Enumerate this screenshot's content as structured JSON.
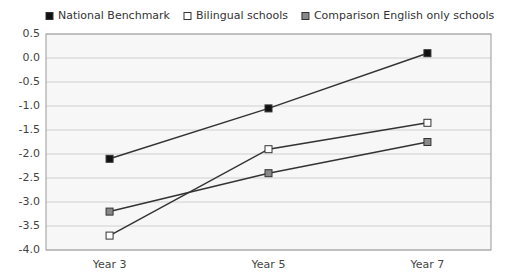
{
  "chart_data": {
    "type": "line",
    "categories": [
      "Year 3",
      "Year 5",
      "Year 7"
    ],
    "series": [
      {
        "name": "National Benchmark",
        "color": "#111111",
        "marker": "square",
        "values": [
          -2.1,
          -1.05,
          0.1
        ]
      },
      {
        "name": "Bilingual schools",
        "color": "#ffffff",
        "marker": "square",
        "values": [
          -3.7,
          -1.9,
          -1.35
        ]
      },
      {
        "name": "Comparison English only schools",
        "color": "#888888",
        "marker": "square",
        "values": [
          -3.2,
          -2.4,
          -1.75
        ]
      }
    ],
    "color": "#333333",
    "ylim": [
      -4.0,
      0.5
    ],
    "yticks": [
      0.5,
      {
        "value": 0,
        "label": "0.0"
      },
      -0.5,
      {
        "value": -1,
        "label": "-1.0"
      },
      -1.5,
      {
        "value": -2,
        "label": "-2.0"
      },
      -2.5,
      {
        "value": -3,
        "label": "-3.0"
      },
      -3.5,
      {
        "value": -4,
        "label": "-4.0"
      }
    ],
    "grid": true,
    "legend": "upper left"
  }
}
